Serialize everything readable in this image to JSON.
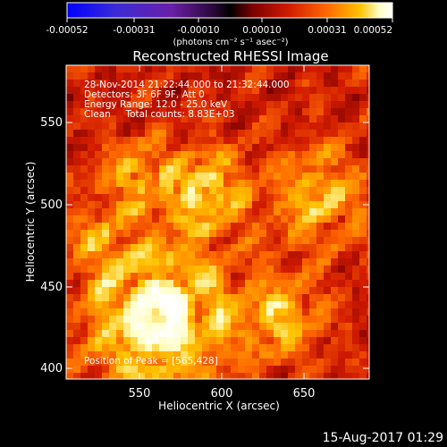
{
  "colorbar": {
    "ticks": [
      "-0.00052",
      "-0.00031",
      "-0.00010",
      "0.00010",
      "0.00031",
      "0.00052"
    ],
    "unit_label": "(photons cm⁻² s⁻¹ asec⁻²)",
    "colors": [
      "#0000ff",
      "#3b2bd6",
      "#6a1fa8",
      "#2a0838",
      "#000000",
      "#7a0000",
      "#d11b00",
      "#ff6a00",
      "#ffc200",
      "#ffffc8",
      "#ffffff"
    ]
  },
  "plot": {
    "title": "Reconstructed RHESSI Image",
    "xlabel": "Heliocentric X (arcsec)",
    "ylabel": "Heliocentric Y (arcsec)",
    "x_ticks": [
      "550",
      "600",
      "650"
    ],
    "y_ticks": [
      "550",
      "500",
      "450",
      "400"
    ],
    "info_lines": [
      "28-Nov-2014 21:22:44.000 to 21:32:44.000",
      "Detectors: 3F 6F 9F, Att 0",
      "Energy Range: 12.0 - 25.0 keV",
      "Clean     Total counts: 8.83E+03"
    ],
    "peak_text": "Position of Peak = [565,428]",
    "peak": {
      "x": 565,
      "y": 428
    }
  },
  "footer_timestamp": "15-Aug-2017 01:29"
}
